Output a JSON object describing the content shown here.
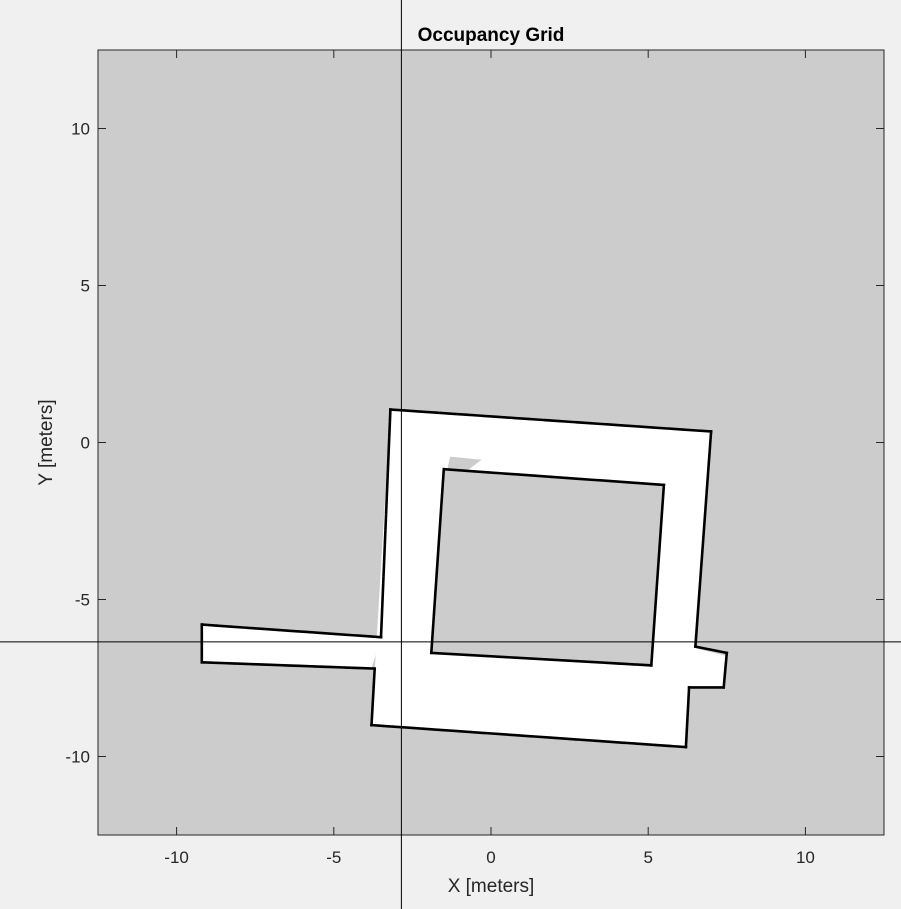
{
  "chart_data": {
    "type": "heatmap",
    "title": "Occupancy Grid",
    "xlabel": "X [meters]",
    "ylabel": "Y [meters]",
    "xlim": [
      -12.5,
      12.5
    ],
    "ylim": [
      -12.5,
      12.5
    ],
    "xticks": [
      -10,
      -5,
      0,
      5,
      10
    ],
    "yticks": [
      10,
      5,
      0,
      -5,
      -10
    ],
    "xtick_labels": [
      "-10",
      "-5",
      "0",
      "5",
      "10"
    ],
    "ytick_labels": [
      "10",
      "5",
      "0",
      "-5",
      "-10"
    ],
    "grid": false,
    "crosshair": {
      "x": -2.85,
      "y": -6.35
    },
    "colors": {
      "figure_background": "#f0f0f0",
      "unknown": "#cccccc",
      "free": "#ffffff",
      "occupied": "#000000",
      "axes": "#262626"
    },
    "free_regions": [
      {
        "name": "outer-loop",
        "points": [
          [
            -3.2,
            1.05
          ],
          [
            7.0,
            0.35
          ],
          [
            6.2,
            -9.7
          ],
          [
            -3.8,
            -9.0
          ]
        ]
      },
      {
        "name": "left-corridor",
        "points": [
          [
            -9.2,
            -5.8
          ],
          [
            -3.5,
            -6.2
          ],
          [
            -3.8,
            -7.2
          ],
          [
            -9.2,
            -7.0
          ]
        ]
      },
      {
        "name": "right-stub",
        "points": [
          [
            6.3,
            -6.5
          ],
          [
            7.5,
            -6.8
          ],
          [
            7.4,
            -7.8
          ],
          [
            6.2,
            -7.8
          ]
        ]
      }
    ],
    "unknown_regions": [
      {
        "name": "inner-block",
        "points": [
          [
            -1.5,
            -0.85
          ],
          [
            5.5,
            -1.35
          ],
          [
            5.1,
            -7.1
          ],
          [
            -1.9,
            -6.7
          ]
        ]
      },
      {
        "name": "inner-notch",
        "points": [
          [
            -1.3,
            -0.45
          ],
          [
            -0.3,
            -0.55
          ],
          [
            -0.7,
            -0.85
          ],
          [
            -1.4,
            -0.9
          ]
        ]
      }
    ],
    "walls": [
      {
        "name": "outer-top",
        "points": [
          [
            -3.2,
            1.05
          ],
          [
            7.0,
            0.35
          ]
        ]
      },
      {
        "name": "outer-right-upper",
        "points": [
          [
            7.0,
            0.35
          ],
          [
            6.5,
            -6.5
          ]
        ]
      },
      {
        "name": "stub-top",
        "points": [
          [
            6.5,
            -6.5
          ],
          [
            7.5,
            -6.7
          ]
        ]
      },
      {
        "name": "stub-right",
        "points": [
          [
            7.5,
            -6.7
          ],
          [
            7.4,
            -7.8
          ]
        ]
      },
      {
        "name": "stub-bottom",
        "points": [
          [
            7.4,
            -7.8
          ],
          [
            6.3,
            -7.8
          ]
        ]
      },
      {
        "name": "outer-right-lower",
        "points": [
          [
            6.3,
            -7.8
          ],
          [
            6.2,
            -9.7
          ]
        ]
      },
      {
        "name": "outer-bottom",
        "points": [
          [
            6.2,
            -9.7
          ],
          [
            -3.8,
            -9.0
          ]
        ]
      },
      {
        "name": "outer-left-lower",
        "points": [
          [
            -3.8,
            -9.0
          ],
          [
            -3.7,
            -7.2
          ]
        ]
      },
      {
        "name": "corridor-bottom",
        "points": [
          [
            -3.7,
            -7.2
          ],
          [
            -9.2,
            -7.0
          ]
        ]
      },
      {
        "name": "corridor-end",
        "points": [
          [
            -9.2,
            -7.0
          ],
          [
            -9.2,
            -5.8
          ]
        ]
      },
      {
        "name": "corridor-top",
        "points": [
          [
            -9.2,
            -5.8
          ],
          [
            -3.5,
            -6.2
          ]
        ]
      },
      {
        "name": "outer-left-upper",
        "points": [
          [
            -3.5,
            -6.2
          ],
          [
            -3.2,
            1.05
          ]
        ]
      },
      {
        "name": "inner-top",
        "points": [
          [
            -1.5,
            -0.85
          ],
          [
            5.5,
            -1.35
          ]
        ]
      },
      {
        "name": "inner-right",
        "points": [
          [
            5.5,
            -1.35
          ],
          [
            5.1,
            -7.1
          ]
        ]
      },
      {
        "name": "inner-bottom",
        "points": [
          [
            5.1,
            -7.1
          ],
          [
            -1.9,
            -6.7
          ]
        ]
      },
      {
        "name": "inner-left",
        "points": [
          [
            -1.9,
            -6.7
          ],
          [
            -1.5,
            -0.85
          ]
        ]
      }
    ]
  }
}
